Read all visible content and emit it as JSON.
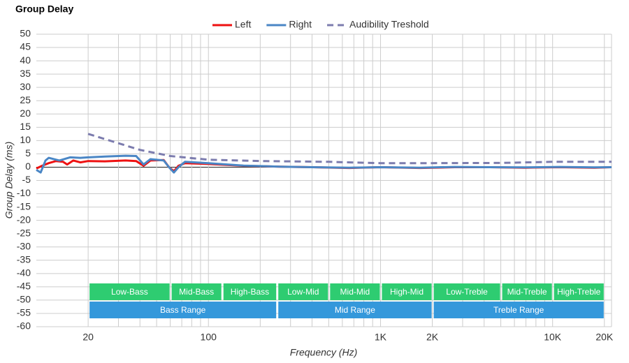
{
  "chart_data": {
    "type": "line",
    "title": "Group Delay",
    "x_label": "Frequency (Hz)",
    "y_label": "Group Delay (ms)",
    "log_x": true,
    "grid": true,
    "xlim": [
      10,
      22000
    ],
    "ylim": [
      -60,
      50
    ],
    "xticks": [
      20,
      100,
      {
        "value": 1000,
        "label": "1K"
      },
      {
        "value": 2000,
        "label": "2K"
      },
      {
        "value": 10000,
        "label": "10K"
      },
      {
        "value": 20000,
        "label": "20K"
      }
    ],
    "xgrid": [
      20,
      30,
      40,
      50,
      60,
      70,
      80,
      90,
      100,
      200,
      300,
      400,
      500,
      600,
      700,
      800,
      900,
      1000,
      2000,
      3000,
      4000,
      5000,
      6000,
      7000,
      8000,
      9000,
      10000,
      20000
    ],
    "yticks": [
      50,
      45,
      40,
      35,
      30,
      25,
      20,
      15,
      10,
      5,
      0,
      -5,
      -10,
      -15,
      -20,
      -25,
      -30,
      -35,
      -40,
      -45,
      -50,
      -55,
      -60
    ],
    "series": [
      {
        "name": "Left",
        "color": "#ee1111",
        "dash": false,
        "x": [
          10,
          10.8,
          11.8,
          13,
          14.3,
          15.1,
          16.4,
          18,
          20,
          25,
          33,
          38,
          42,
          46,
          55,
          59,
          63,
          67,
          73,
          100,
          160,
          260,
          400,
          660,
          1000,
          1700,
          2700,
          4300,
          6900,
          11000,
          17500,
          22000
        ],
        "values": [
          -0.5,
          0.5,
          1.5,
          2.3,
          2.0,
          1.0,
          2.5,
          1.8,
          2.3,
          2.2,
          2.5,
          2.3,
          0.5,
          2.5,
          2.7,
          0,
          -1.5,
          0.5,
          1.5,
          1.2,
          0.5,
          0.2,
          0,
          -0.3,
          0,
          -0.3,
          0,
          0,
          -0.2,
          0,
          -0.2,
          0
        ]
      },
      {
        "name": "Right",
        "color": "#4a86c5",
        "dash": false,
        "x": [
          10,
          10.6,
          11.3,
          11.8,
          13.6,
          15.7,
          18,
          20,
          25,
          33,
          38,
          42,
          46,
          55,
          59,
          63,
          67,
          73,
          100,
          160,
          260,
          400,
          660,
          1000,
          1700,
          2700,
          4300,
          6900,
          11000,
          17500,
          22000
        ],
        "values": [
          -1,
          -2,
          2.5,
          3.5,
          2.5,
          3.7,
          3.5,
          3.7,
          4,
          4.3,
          4.2,
          1,
          3,
          2.5,
          0,
          -2,
          0,
          2,
          1.5,
          0.6,
          0.2,
          0,
          -0.2,
          0,
          -0.2,
          0.1,
          0,
          -0.1,
          0.1,
          -0.1,
          0
        ]
      },
      {
        "name": "Audibility Treshold",
        "color": "#7c7cae",
        "dash": true,
        "x": [
          20,
          30,
          40,
          60,
          100,
          200,
          500,
          1000,
          2000,
          5000,
          10000,
          22000
        ],
        "values": [
          12.5,
          9,
          6.5,
          4.2,
          2.8,
          2.3,
          2,
          1.5,
          1.5,
          1.6,
          2,
          2
        ]
      }
    ],
    "bands": [
      {
        "label": "Low-Bass",
        "from": 20,
        "to": 60,
        "color": "#2ecc71",
        "row": 1
      },
      {
        "label": "Mid-Bass",
        "from": 60,
        "to": 120,
        "color": "#2ecc71",
        "row": 1
      },
      {
        "label": "High-Bass",
        "from": 120,
        "to": 250,
        "color": "#2ecc71",
        "row": 1
      },
      {
        "label": "Low-Mid",
        "from": 250,
        "to": 500,
        "color": "#2ecc71",
        "row": 1
      },
      {
        "label": "Mid-Mid",
        "from": 500,
        "to": 1000,
        "color": "#2ecc71",
        "row": 1
      },
      {
        "label": "High-Mid",
        "from": 1000,
        "to": 2000,
        "color": "#2ecc71",
        "row": 1
      },
      {
        "label": "Low-Treble",
        "from": 2000,
        "to": 5000,
        "color": "#2ecc71",
        "row": 1
      },
      {
        "label": "Mid-Treble",
        "from": 5000,
        "to": 10000,
        "color": "#2ecc71",
        "row": 1
      },
      {
        "label": "High-Treble",
        "from": 10000,
        "to": 20000,
        "color": "#2ecc71",
        "row": 1
      },
      {
        "label": "Bass Range",
        "from": 20,
        "to": 250,
        "color": "#3498db",
        "row": 2
      },
      {
        "label": "Mid Range",
        "from": 250,
        "to": 2000,
        "color": "#3498db",
        "row": 2
      },
      {
        "label": "Treble Range",
        "from": 2000,
        "to": 20000,
        "color": "#3498db",
        "row": 2
      }
    ]
  }
}
